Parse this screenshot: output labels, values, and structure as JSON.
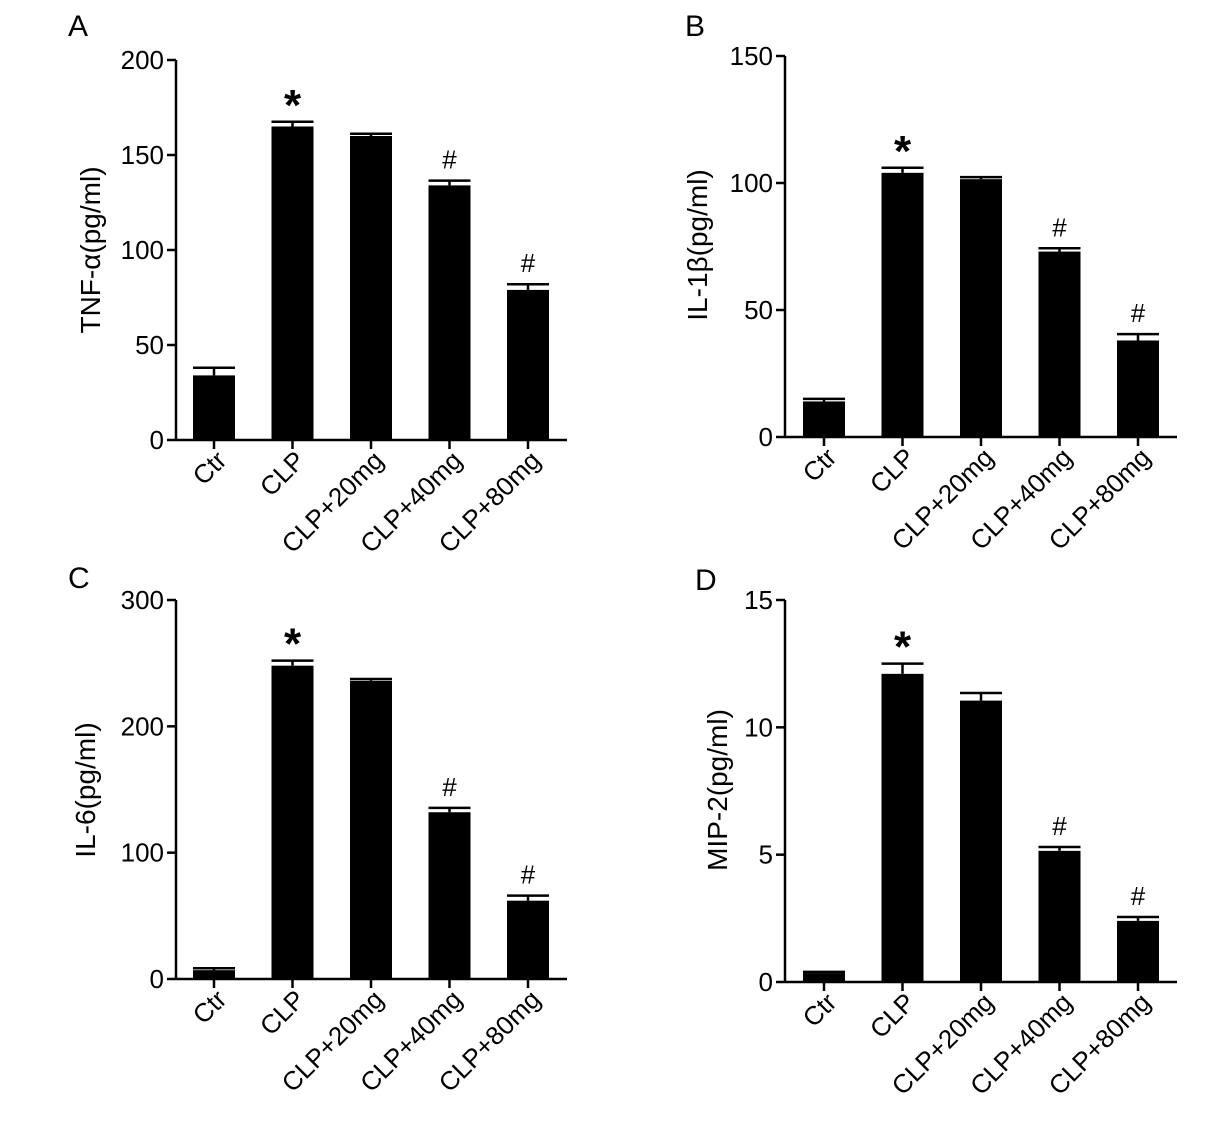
{
  "chart_data": [
    {
      "panel": "A",
      "type": "bar",
      "ylabel": "TNF-α(pg/ml)",
      "categories": [
        "Ctr",
        "CLP",
        "CLP+20mg",
        "CLP+40mg",
        "CLP+80mg"
      ],
      "values": [
        34,
        165,
        160,
        134,
        79
      ],
      "errors": [
        4,
        2.5,
        1.2,
        2.5,
        3
      ],
      "annotations": [
        "",
        "*",
        "",
        "#",
        "#"
      ],
      "ylim": [
        0,
        200
      ],
      "yticks": [
        0,
        50,
        100,
        150,
        200
      ]
    },
    {
      "panel": "B",
      "type": "bar",
      "ylabel": "IL-1β(pg/ml)",
      "categories": [
        "Ctr",
        "CLP",
        "CLP+20mg",
        "CLP+40mg",
        "CLP+80mg"
      ],
      "values": [
        14,
        104,
        101.5,
        73,
        38
      ],
      "errors": [
        1,
        2,
        0.8,
        1.3,
        2.5
      ],
      "annotations": [
        "",
        "*",
        "",
        "#",
        "#"
      ],
      "ylim": [
        0,
        150
      ],
      "yticks": [
        0,
        50,
        100,
        150
      ]
    },
    {
      "panel": "C",
      "type": "bar",
      "ylabel": "IL-6(pg/ml)",
      "categories": [
        "Ctr",
        "CLP",
        "CLP+20mg",
        "CLP+40mg",
        "CLP+80mg"
      ],
      "values": [
        7,
        248,
        236,
        132,
        62
      ],
      "errors": [
        1.5,
        4,
        1.5,
        3.5,
        4
      ],
      "annotations": [
        "",
        "*",
        "",
        "#",
        "#"
      ],
      "ylim": [
        0,
        300
      ],
      "yticks": [
        0,
        100,
        200,
        300
      ]
    },
    {
      "panel": "D",
      "type": "bar",
      "ylabel": "MIP-2(pg/ml)",
      "categories": [
        "Ctr",
        "CLP",
        "CLP+20mg",
        "CLP+40mg",
        "CLP+80mg"
      ],
      "values": [
        0.35,
        12.1,
        11.05,
        5.15,
        2.4
      ],
      "errors": [
        0.05,
        0.4,
        0.3,
        0.15,
        0.15
      ],
      "annotations": [
        "",
        "*",
        "",
        "#",
        "#"
      ],
      "ylim": [
        0,
        15
      ],
      "yticks": [
        0,
        5,
        10,
        15
      ]
    }
  ],
  "colors": {
    "bar": "#000000",
    "axis": "#000000"
  }
}
